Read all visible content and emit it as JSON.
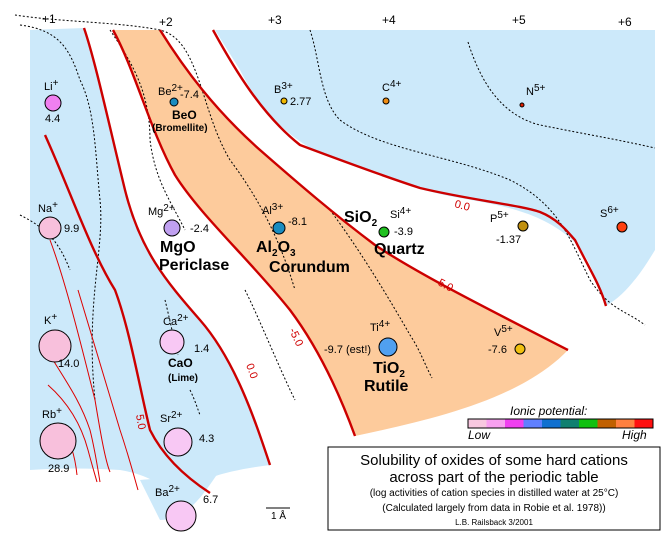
{
  "group_headers": [
    "+1",
    "+2",
    "+3",
    "+4",
    "+5",
    "+6"
  ],
  "cations": [
    {
      "symbol": "Li",
      "charge": "+",
      "value": "4.4",
      "color": "#f080f0"
    },
    {
      "symbol": "Na",
      "charge": "+",
      "value": "9.9",
      "color": "#f8c0dc"
    },
    {
      "symbol": "K",
      "charge": "+",
      "value": "14.0",
      "color": "#f8c0dc"
    },
    {
      "symbol": "Rb",
      "charge": "+",
      "value": "28.9",
      "color": "#f8c0dc"
    },
    {
      "symbol": "Be",
      "charge": "2+",
      "value": "-7.4",
      "color": "#1a8cc0"
    },
    {
      "symbol": "Mg",
      "charge": "2+",
      "value": "-2.4",
      "color": "#c0a0f0"
    },
    {
      "symbol": "Ca",
      "charge": "2+",
      "value": "1.4",
      "color": "#f8c8f4"
    },
    {
      "symbol": "Sr",
      "charge": "2+",
      "value": "4.3",
      "color": "#f8c8f4"
    },
    {
      "symbol": "Ba",
      "charge": "2+",
      "value": "6.7",
      "color": "#f8c8f4"
    },
    {
      "symbol": "B",
      "charge": "3+",
      "value": "2.77",
      "color": "#f0b800"
    },
    {
      "symbol": "Al",
      "charge": "3+",
      "value": "-8.1",
      "color": "#1a8cc0"
    },
    {
      "symbol": "C",
      "charge": "4+",
      "value": "",
      "color": "#f08c10"
    },
    {
      "symbol": "Si",
      "charge": "4+",
      "value": "-3.9",
      "color": "#20c020"
    },
    {
      "symbol": "Ti",
      "charge": "4+",
      "value": "-9.7 (est!)",
      "color": "#50a0f0"
    },
    {
      "symbol": "N",
      "charge": "5+",
      "value": "",
      "color": "#e02000"
    },
    {
      "symbol": "P",
      "charge": "5+",
      "value": "-1.37",
      "color": "#c09010"
    },
    {
      "symbol": "V",
      "charge": "5+",
      "value": "-7.6",
      "color": "#f0c010"
    },
    {
      "symbol": "S",
      "charge": "6+",
      "value": "",
      "color": "#ff4010"
    }
  ],
  "minerals": {
    "beo": {
      "formula": "BeO",
      "name": "(Bromellite)"
    },
    "mgo": {
      "formula": "MgO",
      "name": "Periclase"
    },
    "al2o3": {
      "f1": "Al",
      "s1": "2",
      "f2": "O",
      "s2": "3",
      "name": "Corundum"
    },
    "sio2": {
      "f1": "SiO",
      "s1": "2",
      "name": "Quartz"
    },
    "cao": {
      "formula": "CaO",
      "name": "(Lime)"
    },
    "tio2": {
      "f1": "TiO",
      "s1": "2",
      "name": "Rutile"
    }
  },
  "contour_labels": [
    "0.0",
    "-5.0",
    "-5.0",
    "0.0",
    "5.0"
  ],
  "legend": {
    "title": "Ionic potential:",
    "low": "Low",
    "high": "High",
    "colors": [
      "#f8c8e0",
      "#f8a0f0",
      "#f040f0",
      "#6080ff",
      "#1070d0",
      "#108070",
      "#10c010",
      "#c06000",
      "#ff8040",
      "#ff1010"
    ]
  },
  "scale_label": "1 Å",
  "title_box": {
    "line1": "Solubility of oxides of some hard cations",
    "line2": "across part of the periodic table",
    "line3": "(log activities of cation species in distilled water at 25°C)",
    "line4": "(Calculated largely from data in Robie et al. 1978))",
    "credit": "L.B. Railsback 3/2001"
  }
}
